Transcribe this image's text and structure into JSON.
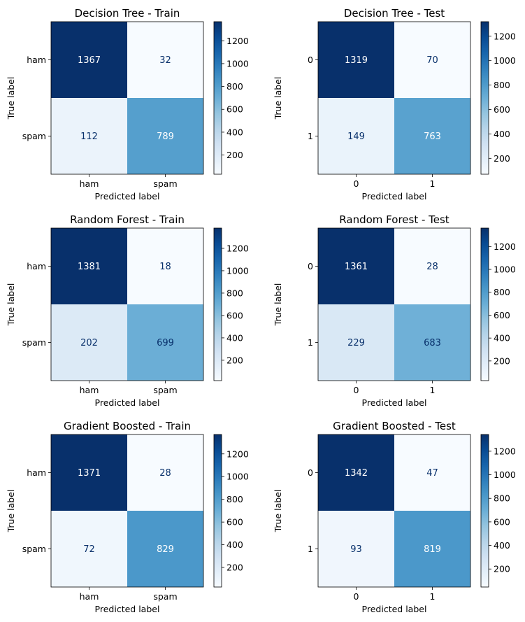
{
  "figure": {
    "background": "#ffffff"
  },
  "chart_data": [
    {
      "type": "heatmap",
      "title": "Decision Tree - Train",
      "xlabel": "Predicted label",
      "ylabel": "True label",
      "labels": [
        "ham",
        "spam"
      ],
      "matrix": [
        [
          1367,
          32
        ],
        [
          112,
          789
        ]
      ],
      "colormap": "Blues",
      "colorbar_ticks": [
        200,
        400,
        600,
        800,
        1000,
        1200
      ]
    },
    {
      "type": "heatmap",
      "title": "Decision Tree - Test",
      "xlabel": "Predicted label",
      "ylabel": "True label",
      "labels": [
        "0",
        "1"
      ],
      "matrix": [
        [
          1319,
          70
        ],
        [
          149,
          763
        ]
      ],
      "colormap": "Blues",
      "colorbar_ticks": [
        200,
        400,
        600,
        800,
        1000,
        1200
      ]
    },
    {
      "type": "heatmap",
      "title": "Random Forest - Train",
      "xlabel": "Predicted label",
      "ylabel": "True label",
      "labels": [
        "ham",
        "spam"
      ],
      "matrix": [
        [
          1381,
          18
        ],
        [
          202,
          699
        ]
      ],
      "colormap": "Blues",
      "colorbar_ticks": [
        200,
        400,
        600,
        800,
        1000,
        1200
      ]
    },
    {
      "type": "heatmap",
      "title": "Random Forest - Test",
      "xlabel": "Predicted label",
      "ylabel": "True label",
      "labels": [
        "0",
        "1"
      ],
      "matrix": [
        [
          1361,
          28
        ],
        [
          229,
          683
        ]
      ],
      "colormap": "Blues",
      "colorbar_ticks": [
        200,
        400,
        600,
        800,
        1000,
        1200
      ]
    },
    {
      "type": "heatmap",
      "title": "Gradient Boosted - Train",
      "xlabel": "Predicted label",
      "ylabel": "True label",
      "labels": [
        "ham",
        "spam"
      ],
      "matrix": [
        [
          1371,
          28
        ],
        [
          72,
          829
        ]
      ],
      "colormap": "Blues",
      "colorbar_ticks": [
        200,
        400,
        600,
        800,
        1000,
        1200
      ]
    },
    {
      "type": "heatmap",
      "title": "Gradient Boosted - Test",
      "xlabel": "Predicted label",
      "ylabel": "True label",
      "labels": [
        "0",
        "1"
      ],
      "matrix": [
        [
          1342,
          47
        ],
        [
          93,
          819
        ]
      ],
      "colormap": "Blues",
      "colorbar_ticks": [
        200,
        400,
        600,
        800,
        1000,
        1200
      ]
    }
  ]
}
